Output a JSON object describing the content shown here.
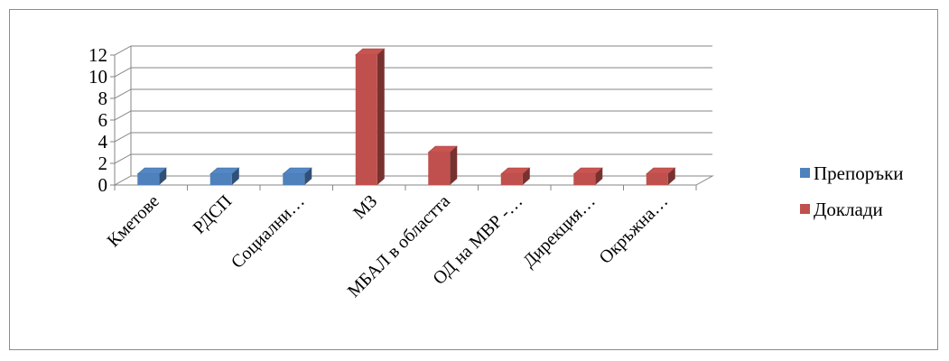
{
  "chart_data": {
    "type": "bar",
    "categories": [
      "Кметове",
      "РДСП",
      "Социални…",
      "МЗ",
      "МБАЛ в областта",
      "ОД на МВР -…",
      "Дирекция…",
      "Окръжна…"
    ],
    "series": [
      {
        "name": "Препоръки",
        "color": "#4f81bd",
        "values": [
          1,
          1,
          1,
          0,
          0,
          0,
          0,
          0
        ]
      },
      {
        "name": "Доклади",
        "color": "#c0504d",
        "values": [
          0,
          0,
          0,
          12,
          3,
          1,
          1,
          1
        ]
      }
    ],
    "yticks": [
      0,
      2,
      4,
      6,
      8,
      10,
      12
    ],
    "ylim": [
      0,
      12
    ],
    "grid": true,
    "legend_position": "right"
  }
}
